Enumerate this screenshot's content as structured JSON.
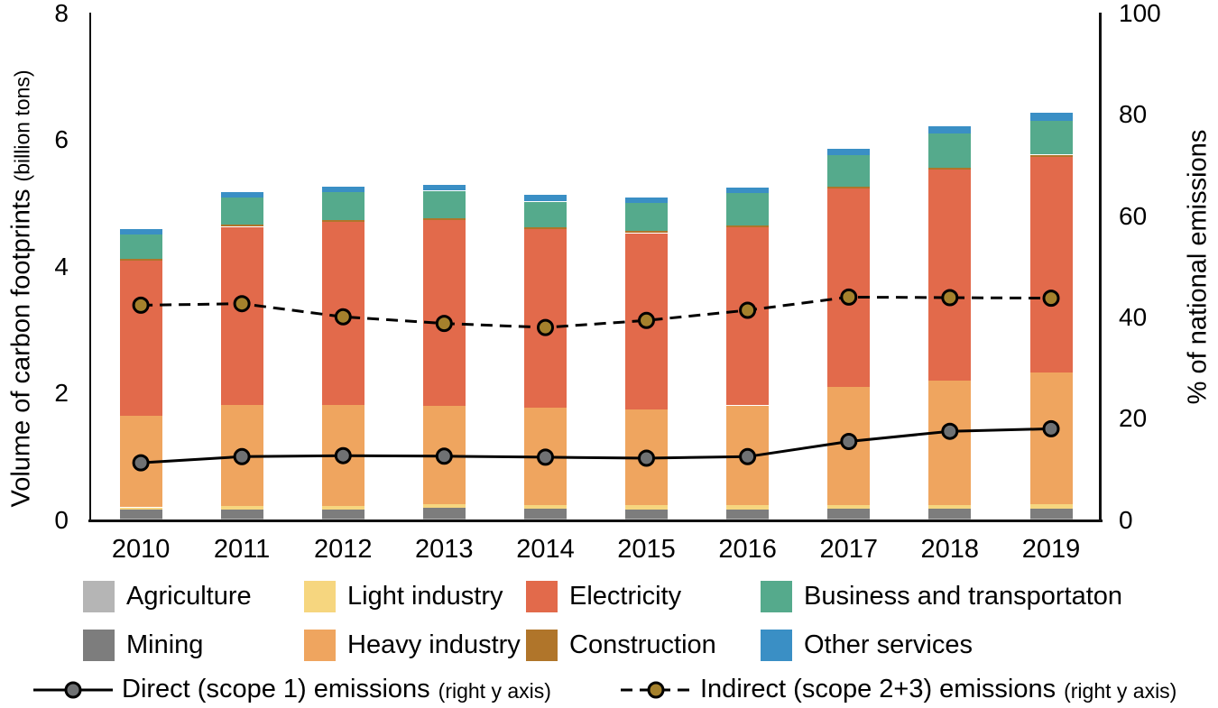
{
  "chart_data": {
    "type": "bar",
    "subtype": "stacked bars (left axis) with two overlaid line series (right axis)",
    "title": "",
    "categories": [
      "2010",
      "2011",
      "2012",
      "2013",
      "2014",
      "2015",
      "2016",
      "2017",
      "2018",
      "2019"
    ],
    "left_axis": {
      "label": "Volume of carbon footprints",
      "label_small": "(billion tons)",
      "ticks": [
        0,
        2,
        4,
        6,
        8
      ],
      "range": [
        0,
        8
      ]
    },
    "right_axis": {
      "label": "% of national emissions",
      "ticks": [
        0,
        20,
        40,
        60,
        80,
        100
      ],
      "range": [
        0,
        100
      ]
    },
    "grid": "off",
    "bar_series": [
      {
        "name": "Agriculture",
        "color": "#b5b5b5",
        "values": [
          0.02,
          0.02,
          0.02,
          0.02,
          0.02,
          0.02,
          0.02,
          0.02,
          0.02,
          0.02
        ]
      },
      {
        "name": "Mining",
        "color": "#7d7d7d",
        "values": [
          0.14,
          0.15,
          0.15,
          0.17,
          0.16,
          0.15,
          0.15,
          0.16,
          0.16,
          0.16
        ]
      },
      {
        "name": "Light industry",
        "color": "#f6d67f",
        "values": [
          0.04,
          0.05,
          0.05,
          0.06,
          0.06,
          0.06,
          0.06,
          0.06,
          0.06,
          0.07
        ]
      },
      {
        "name": "Heavy industry",
        "color": "#efa55f",
        "values": [
          1.44,
          1.6,
          1.6,
          1.55,
          1.53,
          1.52,
          1.58,
          1.86,
          1.96,
          2.08
        ]
      },
      {
        "name": "Electricity",
        "color": "#e26a4b",
        "values": [
          2.46,
          2.81,
          2.89,
          2.94,
          2.82,
          2.78,
          2.81,
          3.14,
          3.34,
          3.41
        ]
      },
      {
        "name": "Construction",
        "color": "#b0752a",
        "values": [
          0.03,
          0.03,
          0.03,
          0.03,
          0.03,
          0.03,
          0.03,
          0.03,
          0.03,
          0.03
        ]
      },
      {
        "name": "Business and transportaton",
        "color": "#55aa8c",
        "values": [
          0.38,
          0.43,
          0.44,
          0.43,
          0.41,
          0.45,
          0.51,
          0.49,
          0.54,
          0.54
        ]
      },
      {
        "name": "Other services",
        "color": "#3a8fc5",
        "values": [
          0.08,
          0.09,
          0.09,
          0.09,
          0.1,
          0.09,
          0.09,
          0.1,
          0.11,
          0.13
        ]
      }
    ],
    "bar_totals": [
      4.59,
      5.18,
      5.27,
      5.29,
      5.13,
      5.1,
      5.25,
      5.86,
      6.22,
      6.44
    ],
    "line_series": [
      {
        "name": "Direct (scope 1) emissions",
        "axis": "right",
        "style": "solid",
        "line_color": "#000000",
        "marker_color": "#6f7173",
        "values": [
          11.3,
          12.5,
          12.7,
          12.6,
          12.4,
          12.2,
          12.5,
          15.5,
          17.5,
          18.0
        ]
      },
      {
        "name": "Indirect (scope 2+3) emissions",
        "axis": "right",
        "style": "dashed",
        "line_color": "#000000",
        "marker_color": "#a5812c",
        "values": [
          42.4,
          42.7,
          40.1,
          38.8,
          38.0,
          39.4,
          41.4,
          44.0,
          43.9,
          43.8
        ]
      }
    ]
  },
  "legend": {
    "bar_rows": [
      [
        "Agriculture",
        "Light industry",
        "Electricity",
        "Business and transportaton"
      ],
      [
        "Mining",
        "Heavy industry",
        "Construction",
        "Other services"
      ]
    ],
    "right_axis_note": "(right y axis)"
  }
}
